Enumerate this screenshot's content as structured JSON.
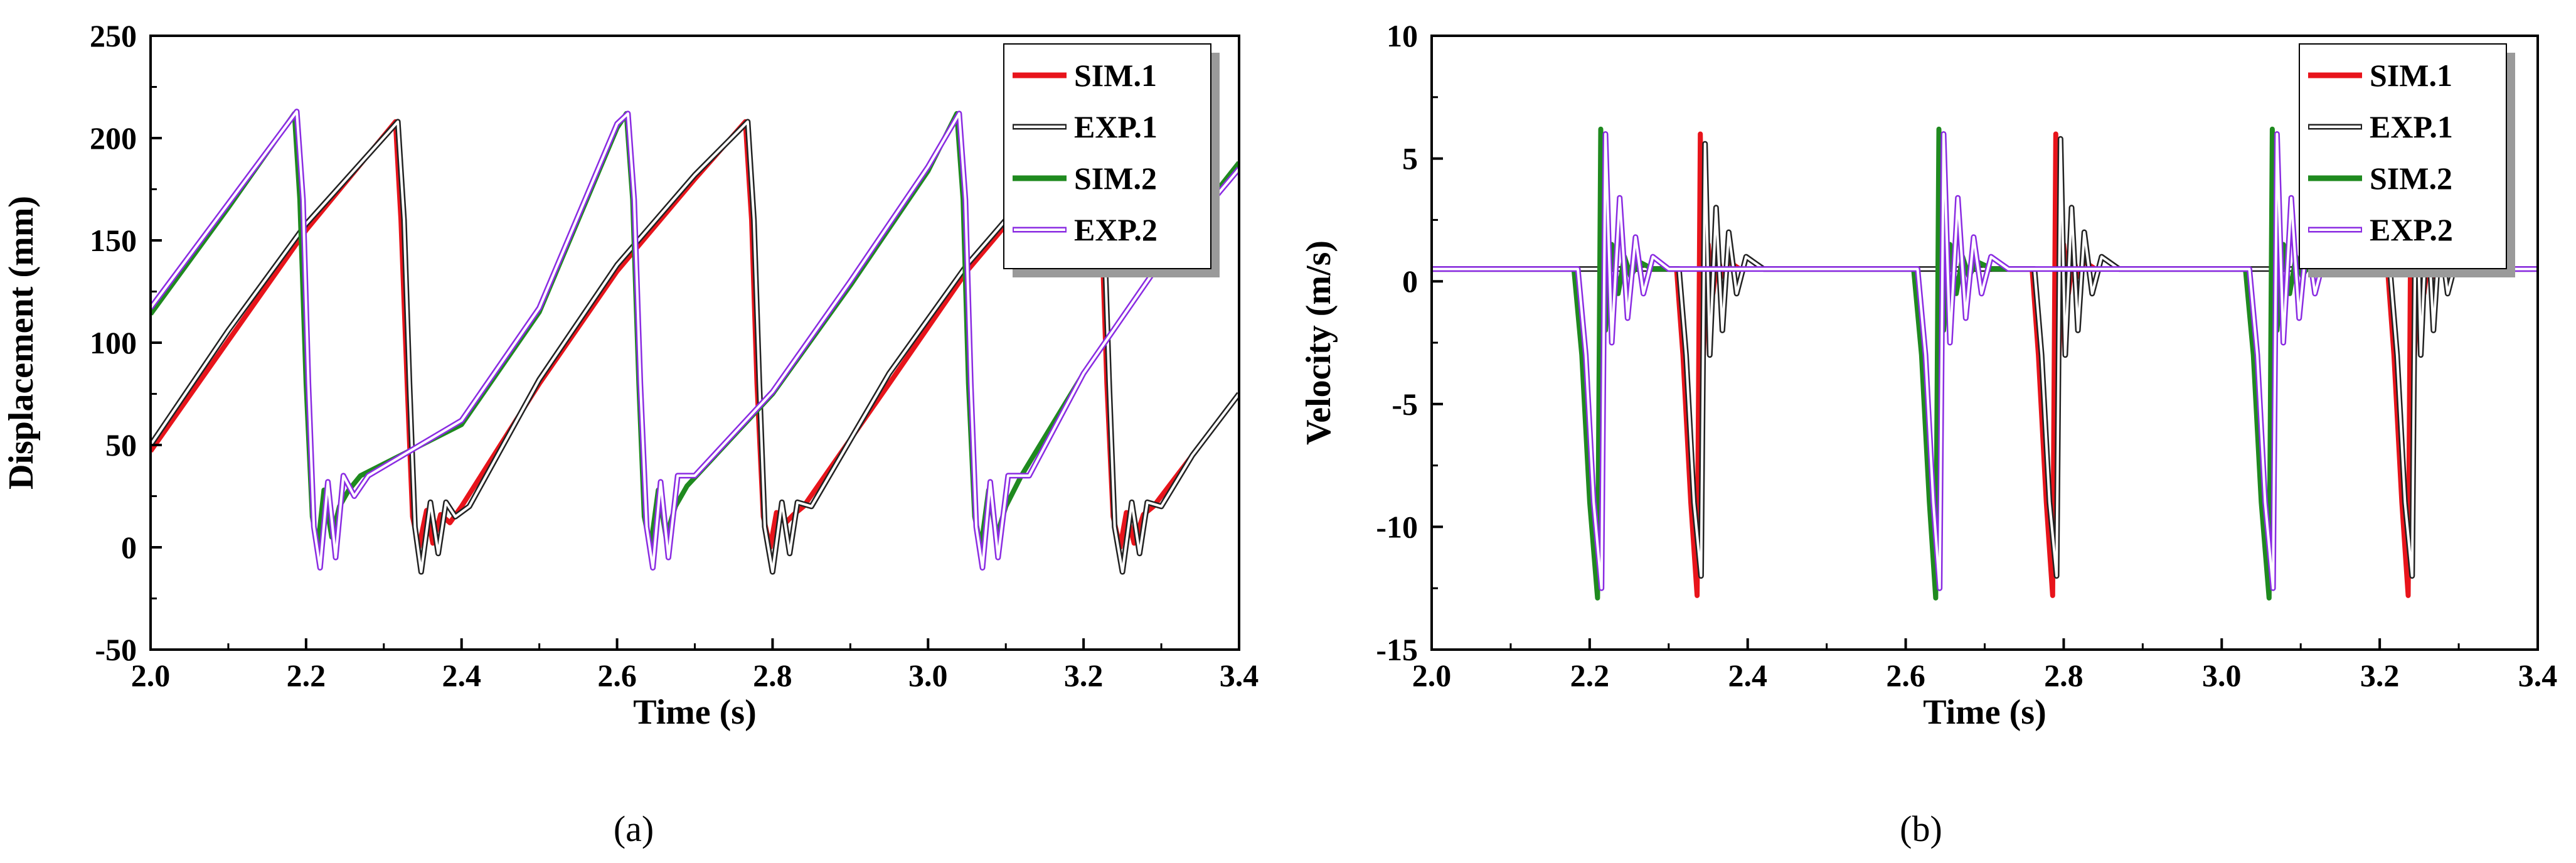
{
  "chart_data": [
    {
      "type": "line",
      "panel_label": "(a)",
      "xlabel": "Time (s)",
      "ylabel": "Displacement (mm)",
      "xlim": [
        2.0,
        3.4
      ],
      "ylim": [
        -50,
        250
      ],
      "xticks": [
        2.0,
        2.2,
        2.4,
        2.6,
        2.8,
        3.0,
        3.2,
        3.4
      ],
      "yticks": [
        -50,
        0,
        50,
        100,
        150,
        200,
        250
      ],
      "legend_position": "top-right",
      "series": [
        {
          "name": "SIM.1",
          "color": "#e8141b",
          "style": "solid",
          "x": [
            2.0,
            2.1,
            2.2,
            2.315,
            2.322,
            2.33,
            2.337,
            2.345,
            2.355,
            2.363,
            2.373,
            2.385,
            2.4,
            2.5,
            2.6,
            2.7,
            2.765,
            2.773,
            2.78,
            2.788,
            2.797,
            2.805,
            2.817,
            2.827,
            2.84,
            2.95,
            3.05,
            3.15,
            3.215,
            3.223,
            3.23,
            3.238,
            3.247,
            3.255,
            3.265,
            3.277,
            3.29,
            3.34,
            3.4
          ],
          "y": [
            47,
            101,
            155,
            208,
            160,
            80,
            15,
            0,
            18,
            2,
            16,
            12,
            20,
            80,
            135,
            180,
            208,
            160,
            80,
            15,
            0,
            17,
            12,
            16,
            20,
            80,
            135,
            180,
            208,
            160,
            80,
            15,
            0,
            17,
            2,
            16,
            20,
            45,
            75
          ]
        },
        {
          "name": "EXP.1",
          "color": "#222222",
          "style": "double",
          "x": [
            2.0,
            2.1,
            2.2,
            2.318,
            2.326,
            2.333,
            2.34,
            2.348,
            2.36,
            2.37,
            2.38,
            2.392,
            2.41,
            2.5,
            2.6,
            2.7,
            2.768,
            2.776,
            2.783,
            2.79,
            2.8,
            2.812,
            2.822,
            2.832,
            2.85,
            2.95,
            3.05,
            3.15,
            3.218,
            3.226,
            3.233,
            3.24,
            3.25,
            3.262,
            3.272,
            3.282,
            3.3,
            3.34,
            3.4
          ],
          "y": [
            50,
            106,
            158,
            208,
            160,
            80,
            10,
            -12,
            22,
            -3,
            22,
            15,
            20,
            82,
            138,
            182,
            208,
            160,
            80,
            10,
            -12,
            22,
            -3,
            22,
            20,
            85,
            138,
            182,
            208,
            160,
            80,
            10,
            -12,
            22,
            -3,
            22,
            20,
            45,
            75
          ]
        },
        {
          "name": "SIM.2",
          "color": "#1f8a1f",
          "style": "solid",
          "x": [
            2.0,
            2.1,
            2.185,
            2.192,
            2.2,
            2.208,
            2.215,
            2.223,
            2.233,
            2.243,
            2.255,
            2.27,
            2.4,
            2.5,
            2.6,
            2.612,
            2.62,
            2.628,
            2.635,
            2.643,
            2.653,
            2.663,
            2.675,
            2.69,
            2.8,
            2.9,
            3.0,
            3.037,
            3.045,
            3.052,
            3.06,
            3.068,
            3.078,
            3.088,
            3.1,
            3.12,
            3.2,
            3.3,
            3.4
          ],
          "y": [
            114,
            166,
            212,
            170,
            80,
            15,
            0,
            28,
            5,
            20,
            28,
            35,
            60,
            115,
            205,
            212,
            170,
            80,
            15,
            0,
            28,
            5,
            20,
            30,
            75,
            128,
            184,
            212,
            170,
            80,
            15,
            0,
            28,
            5,
            20,
            35,
            85,
            140,
            188
          ]
        },
        {
          "name": "EXP.2",
          "color": "#8a2be2",
          "style": "double",
          "x": [
            2.0,
            2.1,
            2.188,
            2.196,
            2.203,
            2.21,
            2.218,
            2.228,
            2.238,
            2.248,
            2.262,
            2.28,
            2.4,
            2.5,
            2.6,
            2.614,
            2.622,
            2.63,
            2.638,
            2.646,
            2.656,
            2.666,
            2.678,
            2.7,
            2.8,
            2.9,
            3.0,
            3.04,
            3.048,
            3.055,
            3.062,
            3.07,
            3.08,
            3.09,
            3.103,
            3.13,
            3.2,
            3.3,
            3.4
          ],
          "y": [
            117,
            168,
            213,
            170,
            80,
            10,
            -10,
            32,
            -5,
            35,
            25,
            35,
            62,
            117,
            207,
            212,
            170,
            80,
            10,
            -10,
            32,
            -5,
            35,
            35,
            76,
            130,
            186,
            212,
            170,
            80,
            10,
            -10,
            32,
            -5,
            35,
            35,
            85,
            140,
            185
          ]
        }
      ]
    },
    {
      "type": "line",
      "panel_label": "(b)",
      "xlabel": "Time (s)",
      "ylabel": "Velocity (m/s)",
      "xlim": [
        2.0,
        3.4
      ],
      "ylim": [
        -15,
        10
      ],
      "xticks": [
        2.0,
        2.2,
        2.4,
        2.6,
        2.8,
        3.0,
        3.2,
        3.4
      ],
      "yticks": [
        -15,
        -10,
        -5,
        0,
        5,
        10
      ],
      "legend_position": "top-right",
      "series": [
        {
          "name": "SIM.1",
          "color": "#e8141b",
          "style": "solid",
          "x": [
            2.0,
            2.31,
            2.318,
            2.328,
            2.336,
            2.34,
            2.344,
            2.35,
            2.356,
            2.362,
            2.368,
            2.376,
            2.39,
            2.76,
            2.768,
            2.778,
            2.786,
            2.79,
            2.794,
            2.8,
            2.806,
            2.812,
            2.818,
            2.826,
            2.84,
            3.21,
            3.218,
            3.228,
            3.236,
            3.24,
            3.244,
            3.25,
            3.256,
            3.262,
            3.268,
            3.276,
            3.29,
            3.4
          ],
          "y": [
            0.5,
            0.5,
            -3,
            -9,
            -12.8,
            6.0,
            -3,
            1.5,
            -0.5,
            1.0,
            0.2,
            0.8,
            0.5,
            0.5,
            -3,
            -9,
            -12.8,
            6.0,
            -3,
            1.5,
            -0.5,
            1.0,
            0.2,
            0.8,
            0.5,
            0.5,
            -3,
            -9,
            -12.8,
            6.0,
            -3,
            1.5,
            -0.5,
            1.0,
            0.2,
            0.8,
            0.5,
            0.5
          ]
        },
        {
          "name": "EXP.1",
          "color": "#222222",
          "style": "double",
          "x": [
            2.0,
            2.313,
            2.322,
            2.332,
            2.341,
            2.346,
            2.352,
            2.36,
            2.368,
            2.376,
            2.386,
            2.398,
            2.42,
            2.763,
            2.772,
            2.782,
            2.791,
            2.796,
            2.802,
            2.81,
            2.818,
            2.826,
            2.836,
            2.848,
            2.87,
            3.213,
            3.222,
            3.232,
            3.241,
            3.246,
            3.252,
            3.26,
            3.268,
            3.276,
            3.286,
            3.298,
            3.32,
            3.4
          ],
          "y": [
            0.5,
            0.5,
            -3,
            -9,
            -12,
            5.6,
            -3,
            3,
            -2,
            2,
            -0.5,
            1.0,
            0.5,
            0.5,
            -3,
            -9,
            -12,
            5.8,
            -3,
            3,
            -2,
            2,
            -0.5,
            1.0,
            0.5,
            0.5,
            -3,
            -9,
            -12,
            5.6,
            -3,
            3,
            -2,
            2,
            -0.5,
            1.0,
            0.5,
            0.5
          ]
        },
        {
          "name": "SIM.2",
          "color": "#1f8a1f",
          "style": "solid",
          "x": [
            2.0,
            2.18,
            2.19,
            2.2,
            2.21,
            2.214,
            2.22,
            2.228,
            2.236,
            2.244,
            2.252,
            2.262,
            2.28,
            2.61,
            2.62,
            2.63,
            2.638,
            2.642,
            2.648,
            2.656,
            2.664,
            2.672,
            2.68,
            2.69,
            2.71,
            3.03,
            3.04,
            3.05,
            3.06,
            3.064,
            3.07,
            3.078,
            3.086,
            3.094,
            3.102,
            3.112,
            3.13,
            3.4
          ],
          "y": [
            0.5,
            0.5,
            -3,
            -9,
            -12.9,
            6.2,
            -2,
            1.5,
            -0.5,
            1.0,
            0.2,
            0.8,
            0.5,
            0.5,
            -3,
            -9,
            -12.9,
            6.2,
            -2,
            1.5,
            -0.5,
            1.0,
            0.2,
            0.8,
            0.5,
            0.5,
            -3,
            -9,
            -12.9,
            6.2,
            -2,
            1.5,
            -0.5,
            1.0,
            0.2,
            0.8,
            0.5,
            0.5
          ]
        },
        {
          "name": "EXP.2",
          "color": "#8a2be2",
          "style": "double",
          "x": [
            2.0,
            2.185,
            2.195,
            2.205,
            2.215,
            2.22,
            2.228,
            2.238,
            2.248,
            2.258,
            2.268,
            2.28,
            2.3,
            2.615,
            2.625,
            2.635,
            2.643,
            2.648,
            2.656,
            2.666,
            2.676,
            2.686,
            2.696,
            2.708,
            2.73,
            3.035,
            3.045,
            3.055,
            3.065,
            3.07,
            3.078,
            3.088,
            3.098,
            3.108,
            3.118,
            3.13,
            3.15,
            3.4
          ],
          "y": [
            0.5,
            0.5,
            -3,
            -9,
            -12.5,
            6.0,
            -2.5,
            3.4,
            -1.5,
            1.8,
            -0.5,
            1.0,
            0.5,
            0.5,
            -3,
            -9,
            -12.5,
            6.0,
            -2.5,
            3.4,
            -1.5,
            1.8,
            -0.5,
            1.0,
            0.5,
            0.5,
            -3,
            -9,
            -12.5,
            6.0,
            -2.5,
            3.4,
            -1.5,
            1.8,
            -0.5,
            1.0,
            0.5,
            0.5
          ]
        }
      ]
    }
  ]
}
